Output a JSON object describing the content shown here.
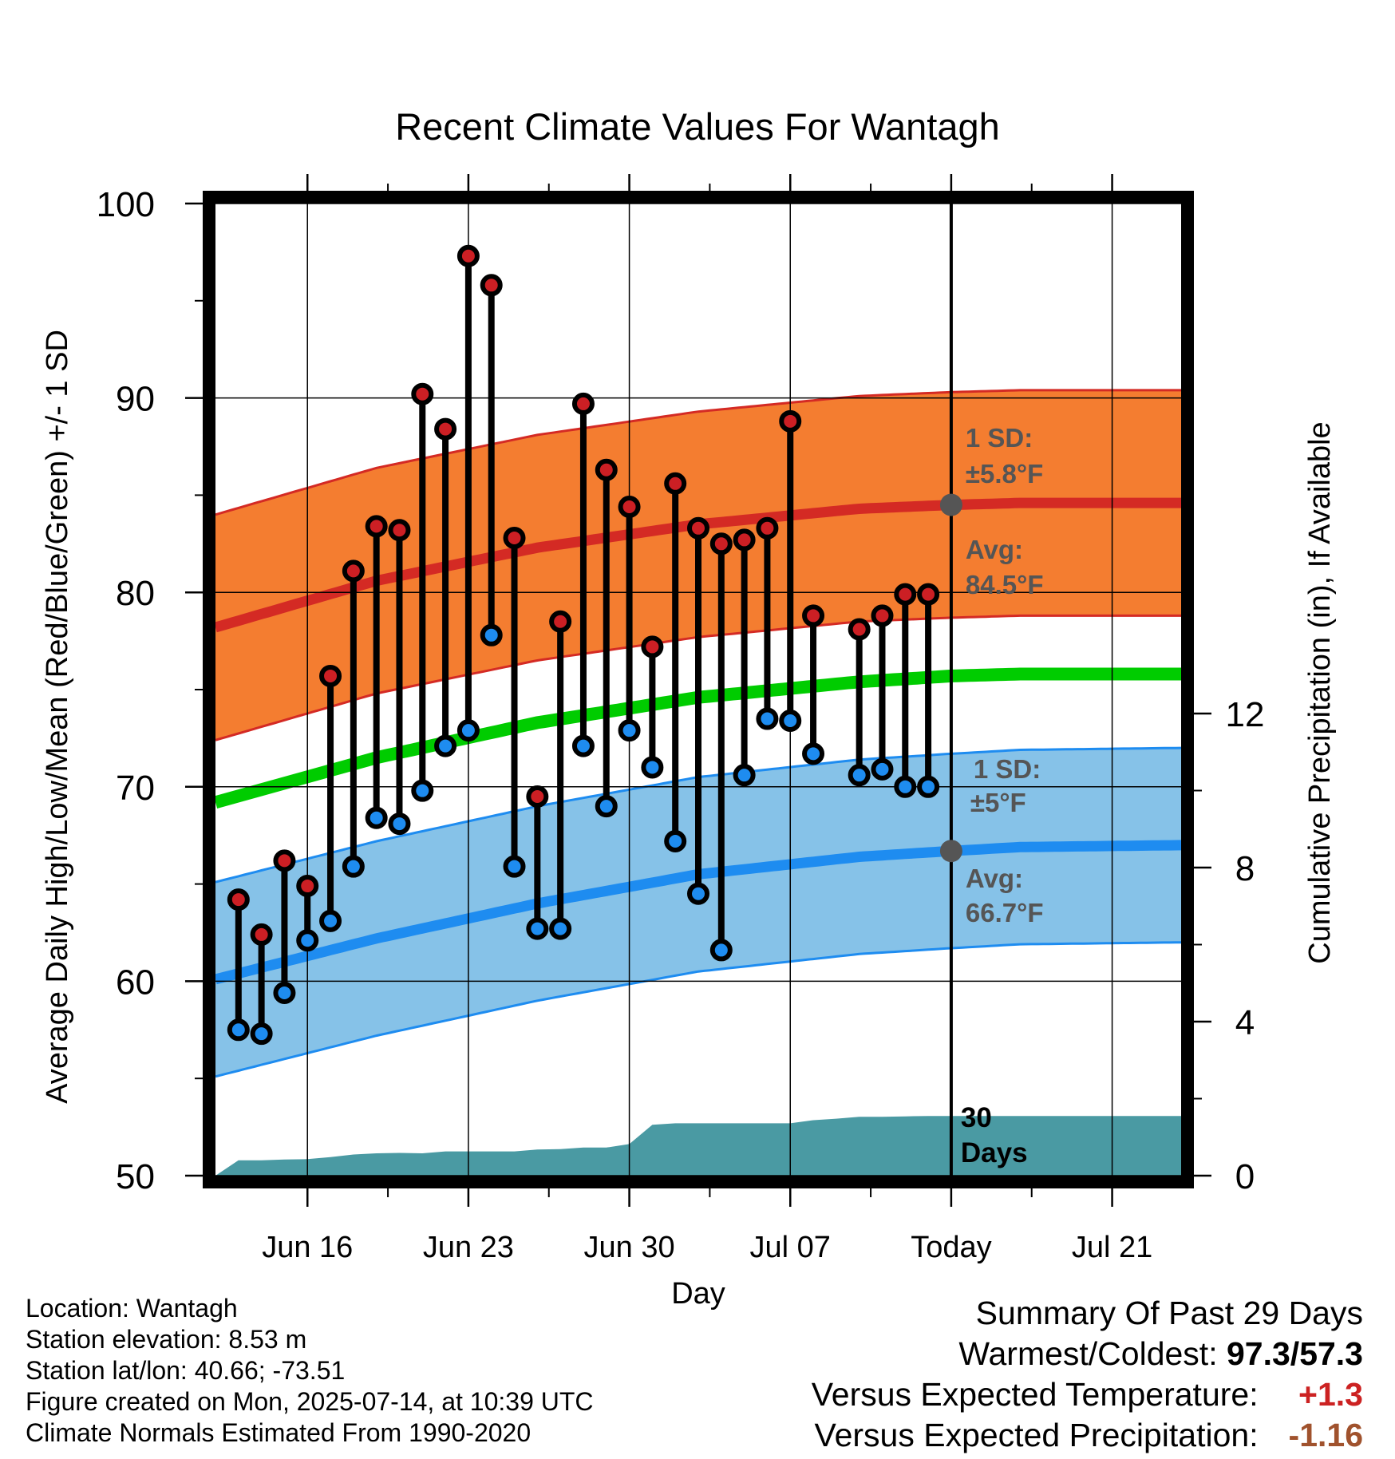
{
  "chart_data": {
    "type": "line",
    "title": "Recent Climate Values For Wantagh",
    "xlabel": "Day",
    "ylabel": "Average Daily High/Low/Mean (Red/Blue/Green) +/- 1 SD",
    "y2label": "Cumulative Precipitation (in), If Available",
    "ylim": [
      50,
      100
    ],
    "y2lim": [
      0,
      12
    ],
    "yticks": [
      "50",
      "60",
      "70",
      "80",
      "90",
      "100"
    ],
    "y2ticks": [
      "0",
      "4",
      "8",
      "12"
    ],
    "xlim": [
      "2025-06-12",
      "2025-07-24"
    ],
    "xticks": [
      {
        "date": "2025-06-16",
        "label": "Jun 16"
      },
      {
        "date": "2025-06-23",
        "label": "Jun 23"
      },
      {
        "date": "2025-06-30",
        "label": "Jun 30"
      },
      {
        "date": "2025-07-07",
        "label": "Jul 07"
      },
      {
        "date": "2025-07-14",
        "label": "Today"
      },
      {
        "date": "2025-07-21",
        "label": "Jul 21"
      }
    ],
    "grid": true,
    "today": "2025-07-14",
    "today_period_label": "30 Days",
    "colors": {
      "high_band": "#f47d30",
      "high_line": "#d42a24",
      "low_band": "#86c2e8",
      "low_line": "#1e8cf0",
      "mean_line": "#00cc00",
      "precip": "#4a9aa3",
      "high_point": "#cc1f24",
      "low_point": "#1e8cf0",
      "annotation": "#555555"
    },
    "normals": {
      "dates": [
        "2025-06-12",
        "2025-06-19",
        "2025-06-26",
        "2025-07-03",
        "2025-07-10",
        "2025-07-14",
        "2025-07-17",
        "2025-07-24"
      ],
      "high_avg": [
        78.2,
        80.6,
        82.3,
        83.5,
        84.3,
        84.5,
        84.6,
        84.6
      ],
      "high_sd": 5.8,
      "low_avg": [
        60.1,
        62.2,
        64.0,
        65.5,
        66.4,
        66.7,
        66.9,
        67.0
      ],
      "low_sd": 5,
      "mean_avg": [
        69.2,
        71.5,
        73.3,
        74.6,
        75.4,
        75.7,
        75.8,
        75.8
      ]
    },
    "series": [
      {
        "name": "High",
        "x": [
          "2025-06-13",
          "2025-06-14",
          "2025-06-15",
          "2025-06-16",
          "2025-06-17",
          "2025-06-18",
          "2025-06-19",
          "2025-06-20",
          "2025-06-21",
          "2025-06-22",
          "2025-06-23",
          "2025-06-24",
          "2025-06-25",
          "2025-06-26",
          "2025-06-27",
          "2025-06-28",
          "2025-06-29",
          "2025-06-30",
          "2025-07-01",
          "2025-07-02",
          "2025-07-03",
          "2025-07-04",
          "2025-07-05",
          "2025-07-06",
          "2025-07-07",
          "2025-07-08",
          "2025-07-10",
          "2025-07-11",
          "2025-07-12",
          "2025-07-13"
        ],
        "values": [
          64.2,
          62.4,
          66.2,
          64.9,
          75.7,
          81.1,
          83.4,
          83.2,
          90.2,
          88.4,
          97.3,
          95.8,
          82.8,
          69.5,
          78.5,
          89.7,
          86.3,
          84.4,
          77.2,
          85.6,
          83.3,
          82.5,
          82.7,
          83.3,
          88.8,
          78.8,
          78.1,
          78.8,
          79.9,
          79.9
        ]
      },
      {
        "name": "Low",
        "x": [
          "2025-06-13",
          "2025-06-14",
          "2025-06-15",
          "2025-06-16",
          "2025-06-17",
          "2025-06-18",
          "2025-06-19",
          "2025-06-20",
          "2025-06-21",
          "2025-06-22",
          "2025-06-23",
          "2025-06-24",
          "2025-06-25",
          "2025-06-26",
          "2025-06-27",
          "2025-06-28",
          "2025-06-29",
          "2025-06-30",
          "2025-07-01",
          "2025-07-02",
          "2025-07-03",
          "2025-07-04",
          "2025-07-05",
          "2025-07-06",
          "2025-07-07",
          "2025-07-08",
          "2025-07-10",
          "2025-07-11",
          "2025-07-12",
          "2025-07-13"
        ],
        "values": [
          57.5,
          57.3,
          59.4,
          62.1,
          63.1,
          65.9,
          68.4,
          68.1,
          69.8,
          72.1,
          72.9,
          77.8,
          65.9,
          62.7,
          62.7,
          72.1,
          69.0,
          72.9,
          71.0,
          67.2,
          64.5,
          61.6,
          70.6,
          73.5,
          73.4,
          71.7,
          70.6,
          70.9,
          70.0,
          70.0
        ]
      },
      {
        "name": "Cumulative Precipitation",
        "x": [
          "2025-06-12",
          "2025-06-13",
          "2025-06-14",
          "2025-06-15",
          "2025-06-16",
          "2025-06-17",
          "2025-06-18",
          "2025-06-19",
          "2025-06-20",
          "2025-06-21",
          "2025-06-22",
          "2025-06-23",
          "2025-06-24",
          "2025-06-25",
          "2025-06-26",
          "2025-06-27",
          "2025-06-28",
          "2025-06-29",
          "2025-06-30",
          "2025-07-01",
          "2025-07-02",
          "2025-07-03",
          "2025-07-04",
          "2025-07-05",
          "2025-07-06",
          "2025-07-07",
          "2025-07-08",
          "2025-07-09",
          "2025-07-10",
          "2025-07-11",
          "2025-07-12",
          "2025-07-13",
          "2025-07-14",
          "2025-07-24"
        ],
        "values": [
          0.0,
          0.4,
          0.4,
          0.42,
          0.43,
          0.48,
          0.55,
          0.58,
          0.59,
          0.58,
          0.63,
          0.63,
          0.63,
          0.63,
          0.68,
          0.69,
          0.73,
          0.73,
          0.82,
          1.32,
          1.36,
          1.36,
          1.36,
          1.36,
          1.36,
          1.36,
          1.44,
          1.48,
          1.53,
          1.53,
          1.54,
          1.55,
          1.55,
          1.55
        ]
      }
    ],
    "annotations": {
      "high_sd_label": "1 SD:",
      "high_sd_value": "±5.8°F",
      "high_avg_label": "Avg:",
      "high_avg_value": "84.5°F",
      "low_sd_label": "1 SD:",
      "low_sd_value": "±5°F",
      "low_avg_label": "Avg:",
      "low_avg_value": "66.7°F"
    }
  },
  "info": {
    "location": "Location: Wantagh",
    "elevation": "Station elevation: 8.53 m",
    "latlon": "Station lat/lon: 40.66; -73.51",
    "created": "Figure created on Mon, 2025-07-14, at 10:39 UTC",
    "normals": "Climate Normals Estimated From 1990-2020"
  },
  "summary": {
    "title": "Summary Of Past 29 Days",
    "warm_cold_label": "Warmest/Coldest:",
    "warm_cold_value": "97.3/57.3",
    "temp_label": "Versus Expected Temperature:",
    "temp_value": "+1.3",
    "temp_color": "#cc2222",
    "precip_label": "Versus Expected Precipitation:",
    "precip_value": "-1.16",
    "precip_color": "#a0522d"
  }
}
